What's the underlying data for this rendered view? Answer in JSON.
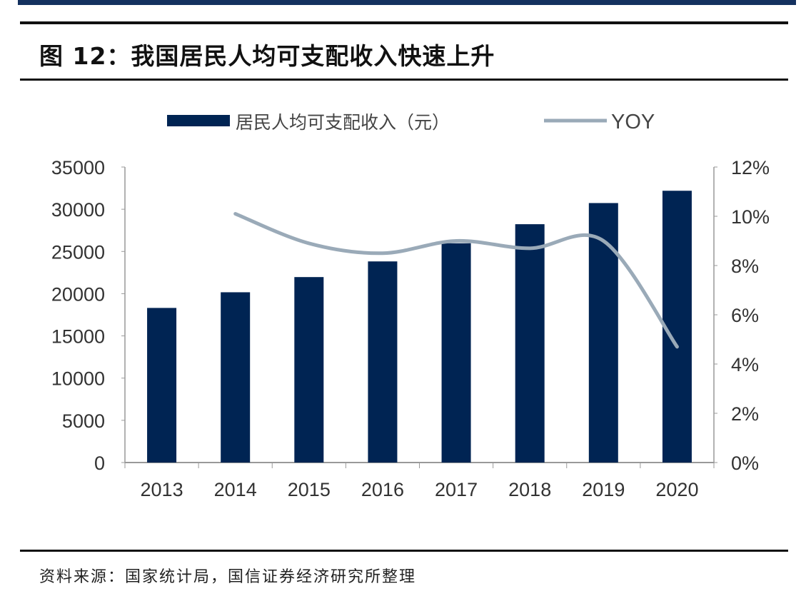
{
  "title": "图 12：我国居民人均可支配收入快速上升",
  "source": "资料来源：国家统计局，国信证券经济研究所整理",
  "colors": {
    "bar": "#002453",
    "line": "#9aaab8",
    "frame": "#14315f"
  },
  "chart_data": {
    "type": "bar+line",
    "categories": [
      "2013",
      "2014",
      "2015",
      "2016",
      "2017",
      "2018",
      "2019",
      "2020"
    ],
    "series": [
      {
        "name": "居民人均可支配收入（元）",
        "type": "bar",
        "axis": "left",
        "values": [
          18311,
          20167,
          21966,
          23821,
          25974,
          28228,
          30733,
          32189
        ]
      },
      {
        "name": "YOY",
        "type": "line",
        "axis": "right",
        "values": [
          null,
          10.1,
          8.9,
          8.5,
          9.0,
          8.7,
          9.0,
          4.7
        ]
      }
    ],
    "y_left": {
      "range": [
        0,
        35000
      ],
      "ticks": [
        "0",
        "5000",
        "10000",
        "15000",
        "20000",
        "25000",
        "30000",
        "35000"
      ]
    },
    "y_right": {
      "range": [
        0,
        12
      ],
      "unit": "%",
      "ticks": [
        "0%",
        "2%",
        "4%",
        "6%",
        "8%",
        "10%",
        "12%"
      ]
    },
    "legend_position": "top",
    "grid": false
  }
}
